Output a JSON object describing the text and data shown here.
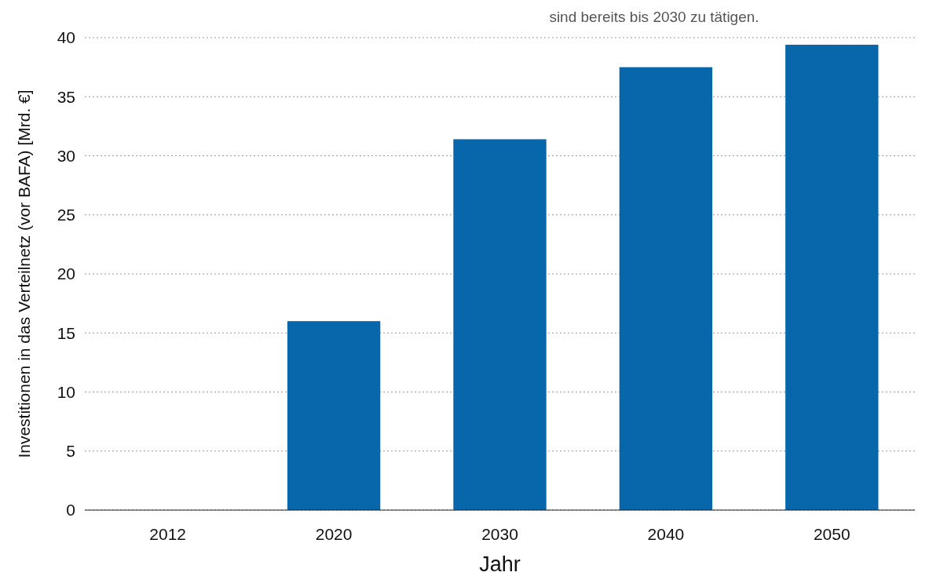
{
  "chart_data": {
    "type": "bar",
    "xlabel": "Jahr",
    "ylabel": "Investitionen in das Verteilnetz (vor BAFA) [Mrd. €]",
    "annotations": [
      "sind bereits bis 2030 zu tätigen."
    ],
    "categories": [
      "2012",
      "2020",
      "2030",
      "2040",
      "2050"
    ],
    "values": [
      0,
      16,
      31.4,
      37.5,
      39.4
    ],
    "color": "#0866ab",
    "ylim": [
      0,
      40
    ],
    "yticks": [
      0,
      5,
      10,
      15,
      20,
      25,
      30,
      35,
      40
    ],
    "grid": "y"
  }
}
